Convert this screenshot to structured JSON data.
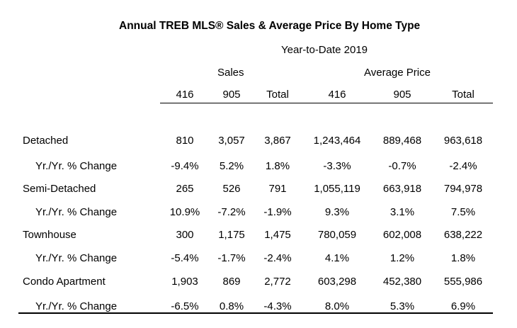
{
  "title": "Annual TREB MLS® Sales & Average Price  By Home Type",
  "subtitle": "Year-to-Date 2019",
  "groups": {
    "sales": "Sales",
    "avg_price": "Average Price"
  },
  "columns": [
    "416",
    "905",
    "Total",
    "416",
    "905",
    "Total"
  ],
  "rows": [
    {
      "label": "Detached",
      "values": [
        "810",
        "3,057",
        "3,867",
        "1,243,464",
        "889,468",
        "963,618"
      ]
    },
    {
      "label": "Yr./Yr. % Change",
      "values": [
        "-9.4%",
        "5.2%",
        "1.8%",
        "-3.3%",
        "-0.7%",
        "-2.4%"
      ]
    },
    {
      "label": "Semi-Detached",
      "values": [
        "265",
        "526",
        "791",
        "1,055,119",
        "663,918",
        "794,978"
      ]
    },
    {
      "label": "Yr./Yr. % Change",
      "values": [
        "10.9%",
        "-7.2%",
        "-1.9%",
        "9.3%",
        "3.1%",
        "7.5%"
      ]
    },
    {
      "label": "Townhouse",
      "values": [
        "300",
        "1,175",
        "1,475",
        "780,059",
        "602,008",
        "638,222"
      ]
    },
    {
      "label": "Yr./Yr. % Change",
      "values": [
        "-5.4%",
        "-1.7%",
        "-2.4%",
        "4.1%",
        "1.2%",
        "1.8%"
      ]
    },
    {
      "label": "Condo Apartment",
      "values": [
        "1,903",
        "869",
        "2,772",
        "603,298",
        "452,380",
        "555,986"
      ]
    },
    {
      "label": "Yr./Yr. % Change",
      "values": [
        "-6.5%",
        "0.8%",
        "-4.3%",
        "8.0%",
        "5.3%",
        "6.9%"
      ]
    }
  ]
}
